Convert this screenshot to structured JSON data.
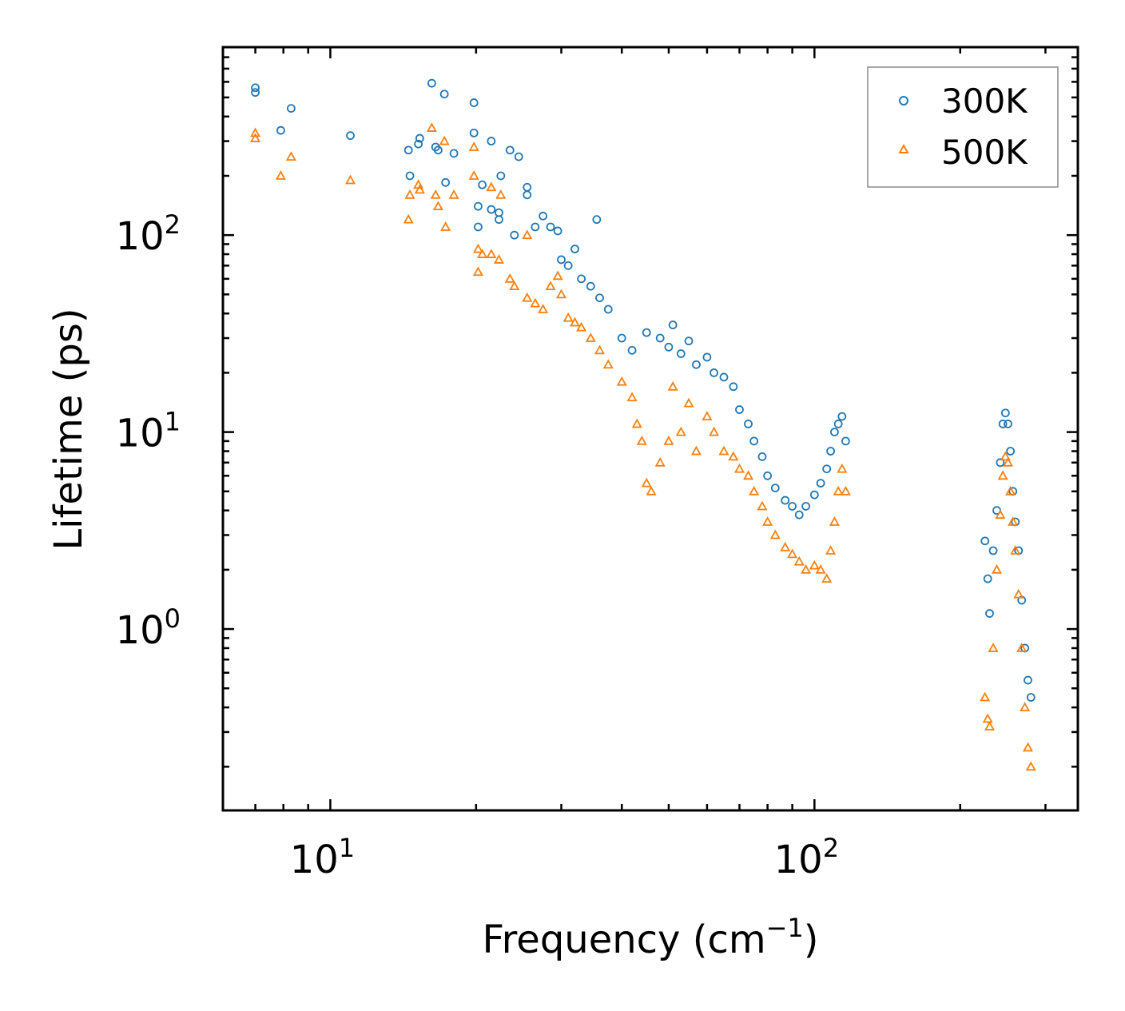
{
  "chart_data": {
    "type": "scatter",
    "xscale": "log",
    "yscale": "log",
    "xlim": [
      6,
      350
    ],
    "ylim": [
      0.12,
      900
    ],
    "xlabel": "Frequency (cm",
    "xlabel_sup": "−1",
    "xlabel_end": ")",
    "ylabel": "Lifetime (ps)",
    "x_ticks": [
      {
        "value": 10,
        "base": "10",
        "exp": "1"
      },
      {
        "value": 100,
        "base": "10",
        "exp": "2"
      }
    ],
    "y_ticks": [
      {
        "value": 1,
        "base": "10",
        "exp": "0"
      },
      {
        "value": 10,
        "base": "10",
        "exp": "1"
      },
      {
        "value": 100,
        "base": "10",
        "exp": "2"
      }
    ],
    "legend_position": "top-right",
    "series": [
      {
        "name": "300K",
        "marker": "circle",
        "color": "#1f77b4",
        "points": [
          [
            7.0,
            560
          ],
          [
            7.0,
            530
          ],
          [
            7.9,
            340
          ],
          [
            8.3,
            440
          ],
          [
            11,
            320
          ],
          [
            14.5,
            270
          ],
          [
            14.6,
            200
          ],
          [
            15.2,
            290
          ],
          [
            15.3,
            310
          ],
          [
            16.2,
            590
          ],
          [
            16.5,
            280
          ],
          [
            16.7,
            270
          ],
          [
            17.2,
            520
          ],
          [
            17.3,
            185
          ],
          [
            18.0,
            260
          ],
          [
            19.8,
            470
          ],
          [
            19.8,
            330
          ],
          [
            20.2,
            140
          ],
          [
            20.2,
            110
          ],
          [
            20.6,
            180
          ],
          [
            21.5,
            300
          ],
          [
            21.5,
            135
          ],
          [
            22.3,
            130
          ],
          [
            22.3,
            120
          ],
          [
            22.5,
            200
          ],
          [
            23.5,
            270
          ],
          [
            24.0,
            100
          ],
          [
            24.5,
            250
          ],
          [
            25.5,
            175
          ],
          [
            25.5,
            160
          ],
          [
            26.5,
            110
          ],
          [
            27.5,
            125
          ],
          [
            28.5,
            110
          ],
          [
            29.5,
            105
          ],
          [
            30.0,
            75
          ],
          [
            31.0,
            70
          ],
          [
            32.0,
            85
          ],
          [
            33.0,
            60
          ],
          [
            34.5,
            55
          ],
          [
            35.5,
            120
          ],
          [
            36.0,
            48
          ],
          [
            37.5,
            42
          ],
          [
            40.0,
            30
          ],
          [
            42.0,
            26
          ],
          [
            45.0,
            32
          ],
          [
            48.0,
            30
          ],
          [
            50.0,
            27
          ],
          [
            51.0,
            35
          ],
          [
            53.0,
            25
          ],
          [
            55.0,
            29
          ],
          [
            57.0,
            22
          ],
          [
            60.0,
            24
          ],
          [
            62.0,
            20
          ],
          [
            65.0,
            19
          ],
          [
            68.0,
            17
          ],
          [
            70.0,
            13
          ],
          [
            73.0,
            11
          ],
          [
            75.0,
            9
          ],
          [
            78.0,
            7.5
          ],
          [
            80.0,
            6
          ],
          [
            83.0,
            5.2
          ],
          [
            87.0,
            4.5
          ],
          [
            90.0,
            4.2
          ],
          [
            93.0,
            3.8
          ],
          [
            96.0,
            4.2
          ],
          [
            100.0,
            4.8
          ],
          [
            103.0,
            5.5
          ],
          [
            106.0,
            6.5
          ],
          [
            108.0,
            8
          ],
          [
            110.0,
            10
          ],
          [
            112.0,
            11
          ],
          [
            114.0,
            12
          ],
          [
            116.0,
            9
          ],
          [
            225,
            2.8
          ],
          [
            228,
            1.8
          ],
          [
            230,
            1.2
          ],
          [
            234,
            2.5
          ],
          [
            238,
            4
          ],
          [
            242,
            7
          ],
          [
            245,
            11
          ],
          [
            248,
            12.5
          ],
          [
            251,
            11
          ],
          [
            254,
            8
          ],
          [
            257,
            5
          ],
          [
            260,
            3.5
          ],
          [
            264,
            2.5
          ],
          [
            268,
            1.4
          ],
          [
            272,
            0.8
          ],
          [
            276,
            0.55
          ],
          [
            280,
            0.45
          ]
        ]
      },
      {
        "name": "500K",
        "marker": "triangle",
        "color": "#ff7f0e",
        "points": [
          [
            7.0,
            330
          ],
          [
            7.0,
            310
          ],
          [
            7.9,
            200
          ],
          [
            8.3,
            250
          ],
          [
            11,
            190
          ],
          [
            14.5,
            120
          ],
          [
            14.6,
            160
          ],
          [
            15.2,
            180
          ],
          [
            15.3,
            170
          ],
          [
            16.2,
            350
          ],
          [
            16.5,
            160
          ],
          [
            16.7,
            140
          ],
          [
            17.2,
            300
          ],
          [
            17.3,
            110
          ],
          [
            18.0,
            160
          ],
          [
            19.8,
            280
          ],
          [
            19.8,
            200
          ],
          [
            20.2,
            65
          ],
          [
            20.2,
            85
          ],
          [
            20.6,
            80
          ],
          [
            21.5,
            175
          ],
          [
            21.5,
            80
          ],
          [
            22.3,
            75
          ],
          [
            22.5,
            160
          ],
          [
            23.5,
            60
          ],
          [
            24.0,
            55
          ],
          [
            25.5,
            100
          ],
          [
            25.5,
            48
          ],
          [
            26.5,
            45
          ],
          [
            27.5,
            42
          ],
          [
            28.5,
            55
          ],
          [
            29.5,
            62
          ],
          [
            30.0,
            50
          ],
          [
            31.0,
            38
          ],
          [
            32.0,
            36
          ],
          [
            33.0,
            34
          ],
          [
            34.5,
            30
          ],
          [
            36.0,
            26
          ],
          [
            37.5,
            22
          ],
          [
            40.0,
            18
          ],
          [
            42.0,
            15
          ],
          [
            43.0,
            11
          ],
          [
            44.0,
            9
          ],
          [
            45.0,
            5.5
          ],
          [
            46.0,
            5
          ],
          [
            48.0,
            7
          ],
          [
            50.0,
            9
          ],
          [
            51.0,
            17
          ],
          [
            53.0,
            10
          ],
          [
            55.0,
            14
          ],
          [
            57.0,
            8
          ],
          [
            60.0,
            12
          ],
          [
            62.0,
            10
          ],
          [
            65.0,
            8
          ],
          [
            68.0,
            7.5
          ],
          [
            70.0,
            6.5
          ],
          [
            73.0,
            6
          ],
          [
            75.0,
            5
          ],
          [
            78.0,
            4.2
          ],
          [
            80.0,
            3.5
          ],
          [
            83.0,
            3
          ],
          [
            87.0,
            2.6
          ],
          [
            90.0,
            2.4
          ],
          [
            93.0,
            2.2
          ],
          [
            96.0,
            2
          ],
          [
            100.0,
            2.1
          ],
          [
            103.0,
            2
          ],
          [
            106.0,
            1.8
          ],
          [
            108.0,
            2.5
          ],
          [
            110.0,
            3.5
          ],
          [
            112.0,
            5
          ],
          [
            114.0,
            6.5
          ],
          [
            116.0,
            5
          ],
          [
            225,
            0.45
          ],
          [
            228,
            0.35
          ],
          [
            230,
            0.32
          ],
          [
            234,
            0.8
          ],
          [
            238,
            2
          ],
          [
            242,
            3.8
          ],
          [
            245,
            6
          ],
          [
            248,
            7.5
          ],
          [
            251,
            7
          ],
          [
            254,
            5
          ],
          [
            257,
            3.5
          ],
          [
            260,
            2.5
          ],
          [
            264,
            1.5
          ],
          [
            268,
            0.8
          ],
          [
            272,
            0.4
          ],
          [
            276,
            0.25
          ],
          [
            280,
            0.2
          ]
        ]
      }
    ]
  }
}
